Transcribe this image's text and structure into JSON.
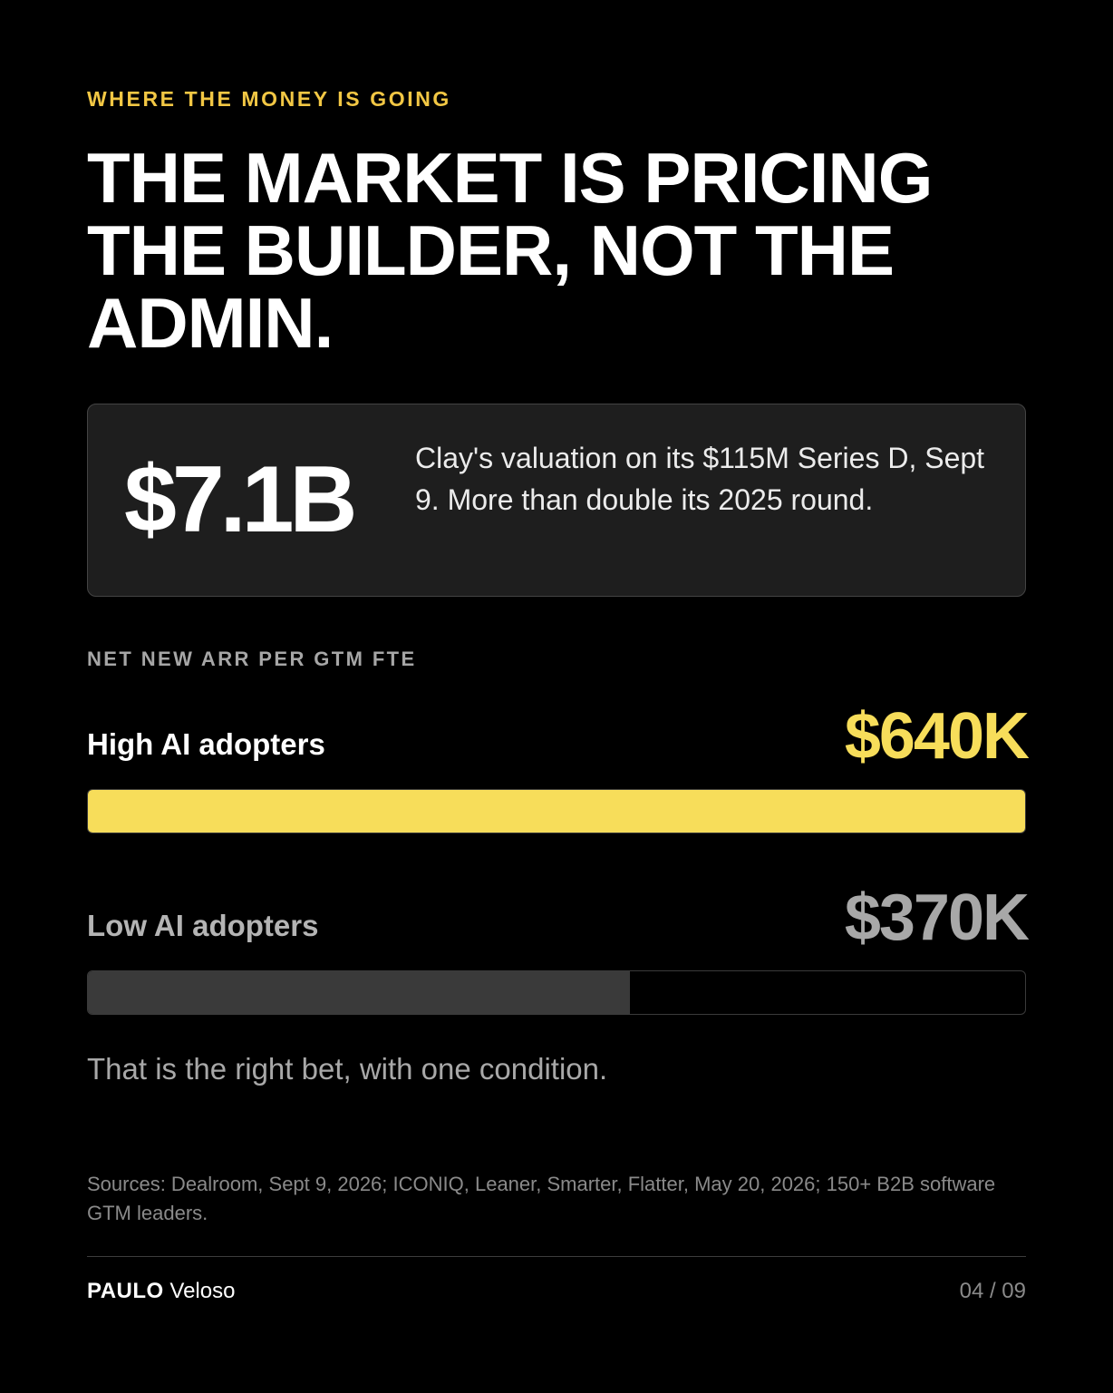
{
  "eyebrow": "WHERE THE MONEY IS GOING",
  "headline": "THE MARKET IS PRICING THE BUILDER, NOT THE ADMIN.",
  "stat": {
    "value": "$7.1B",
    "description": "Clay's valuation on its $115M Series D, Sept 9. More than double its 2025 round."
  },
  "chart_data": {
    "type": "bar",
    "title": "NET NEW ARR PER GTM FTE",
    "categories": [
      "High AI adopters",
      "Low AI adopters"
    ],
    "values": [
      640,
      370
    ],
    "value_labels": [
      "$640K",
      "$370K"
    ],
    "unit": "K",
    "xlim": [
      0,
      640
    ],
    "orientation": "horizontal",
    "grid": false,
    "colors": [
      "#f7dd5a",
      "#3a3a3a"
    ]
  },
  "takeaway": "That is the right bet, with one condition.",
  "sources": "Sources: Dealroom, Sept 9, 2026; ICONIQ, Leaner, Smarter, Flatter, May 20, 2026; 150+ B2B software GTM leaders.",
  "footer": {
    "author_first": "PAULO",
    "author_last": "Veloso",
    "page": "04 / 09"
  },
  "colors": {
    "background": "#000000",
    "accent": "#f2c744",
    "card": "#1e1e1e"
  }
}
